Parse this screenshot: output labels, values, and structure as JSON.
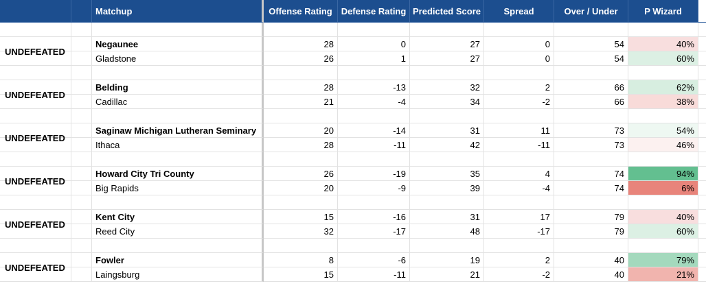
{
  "headers": {
    "matchup": "Matchup",
    "offense": "Offense Rating",
    "defense": "Defense Rating",
    "predicted": "Predicted Score",
    "spread": "Spread",
    "overunder": "Over / Under",
    "pwizard": "P Wizard"
  },
  "colors": {
    "header_bg": "#1c4e8f",
    "green_strong": "#57bb8a",
    "red_strong": "#e67c73"
  },
  "games": [
    {
      "label": "UNDEFEATED",
      "teams": [
        {
          "name": "Negaunee",
          "offense": "28",
          "defense": "0",
          "predicted": "27",
          "spread": "0",
          "overunder": "54",
          "pwizard": "40%",
          "color": "#f8dede"
        },
        {
          "name": "Gladstone",
          "offense": "26",
          "defense": "1",
          "predicted": "27",
          "spread": "0",
          "overunder": "54",
          "pwizard": "60%",
          "color": "#dcf0e4"
        }
      ]
    },
    {
      "label": "UNDEFEATED",
      "teams": [
        {
          "name": "Belding",
          "offense": "28",
          "defense": "-13",
          "predicted": "32",
          "spread": "2",
          "overunder": "66",
          "pwizard": "62%",
          "color": "#d7eee0"
        },
        {
          "name": "Cadillac",
          "offense": "21",
          "defense": "-4",
          "predicted": "34",
          "spread": "-2",
          "overunder": "66",
          "pwizard": "38%",
          "color": "#f8dbd9"
        }
      ]
    },
    {
      "label": "UNDEFEATED",
      "teams": [
        {
          "name": "Saginaw Michigan Lutheran Seminary",
          "offense": "20",
          "defense": "-14",
          "predicted": "31",
          "spread": "11",
          "overunder": "73",
          "pwizard": "54%",
          "color": "#eef8f2"
        },
        {
          "name": "Ithaca",
          "offense": "28",
          "defense": "-11",
          "predicted": "42",
          "spread": "-11",
          "overunder": "73",
          "pwizard": "46%",
          "color": "#fcf1f0"
        }
      ]
    },
    {
      "label": "UNDEFEATED",
      "teams": [
        {
          "name": "Howard City Tri County",
          "offense": "26",
          "defense": "-19",
          "predicted": "35",
          "spread": "4",
          "overunder": "74",
          "pwizard": "94%",
          "color": "#63bf90"
        },
        {
          "name": "Big Rapids",
          "offense": "20",
          "defense": "-9",
          "predicted": "39",
          "spread": "-4",
          "overunder": "74",
          "pwizard": "6%",
          "color": "#e8847b"
        }
      ]
    },
    {
      "label": "UNDEFEATED",
      "teams": [
        {
          "name": "Kent City",
          "offense": "15",
          "defense": "-16",
          "predicted": "31",
          "spread": "17",
          "overunder": "79",
          "pwizard": "40%",
          "color": "#f8dede"
        },
        {
          "name": "Reed City",
          "offense": "32",
          "defense": "-17",
          "predicted": "48",
          "spread": "-17",
          "overunder": "79",
          "pwizard": "60%",
          "color": "#dcf0e4"
        }
      ]
    },
    {
      "label": "UNDEFEATED",
      "teams": [
        {
          "name": "Fowler",
          "offense": "8",
          "defense": "-6",
          "predicted": "19",
          "spread": "2",
          "overunder": "40",
          "pwizard": "79%",
          "color": "#a4d9bd"
        },
        {
          "name": "Laingsburg",
          "offense": "15",
          "defense": "-11",
          "predicted": "21",
          "spread": "-2",
          "overunder": "40",
          "pwizard": "21%",
          "color": "#f1b4ae"
        }
      ]
    }
  ]
}
